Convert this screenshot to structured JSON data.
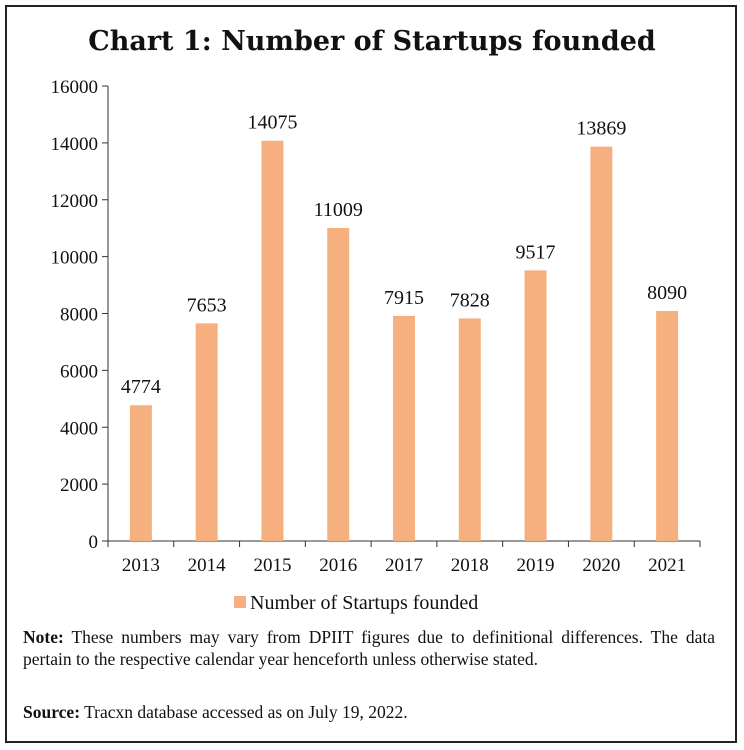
{
  "chart_data": {
    "type": "bar",
    "title": "Chart 1: Number of Startups founded",
    "categories": [
      "2013",
      "2014",
      "2015",
      "2016",
      "2017",
      "2018",
      "2019",
      "2020",
      "2021"
    ],
    "series": [
      {
        "name": "Number of Startups founded",
        "values": [
          4774,
          7653,
          14075,
          11009,
          7915,
          7828,
          9517,
          13869,
          8090
        ],
        "color": "#F6B07F"
      }
    ],
    "ylim": [
      0,
      16000
    ],
    "yticks": [
      0,
      2000,
      4000,
      6000,
      8000,
      10000,
      12000,
      14000,
      16000
    ],
    "xlabel": "",
    "ylabel": "",
    "grid": false,
    "legend": "bottom-center"
  },
  "note": {
    "label": "Note:",
    "text": "These numbers may vary from DPIIT figures due to definitional differences. The data pertain to the respective calendar year henceforth unless otherwise stated."
  },
  "source": {
    "label": "Source:",
    "text": "Tracxn database accessed as on July 19, 2022."
  }
}
